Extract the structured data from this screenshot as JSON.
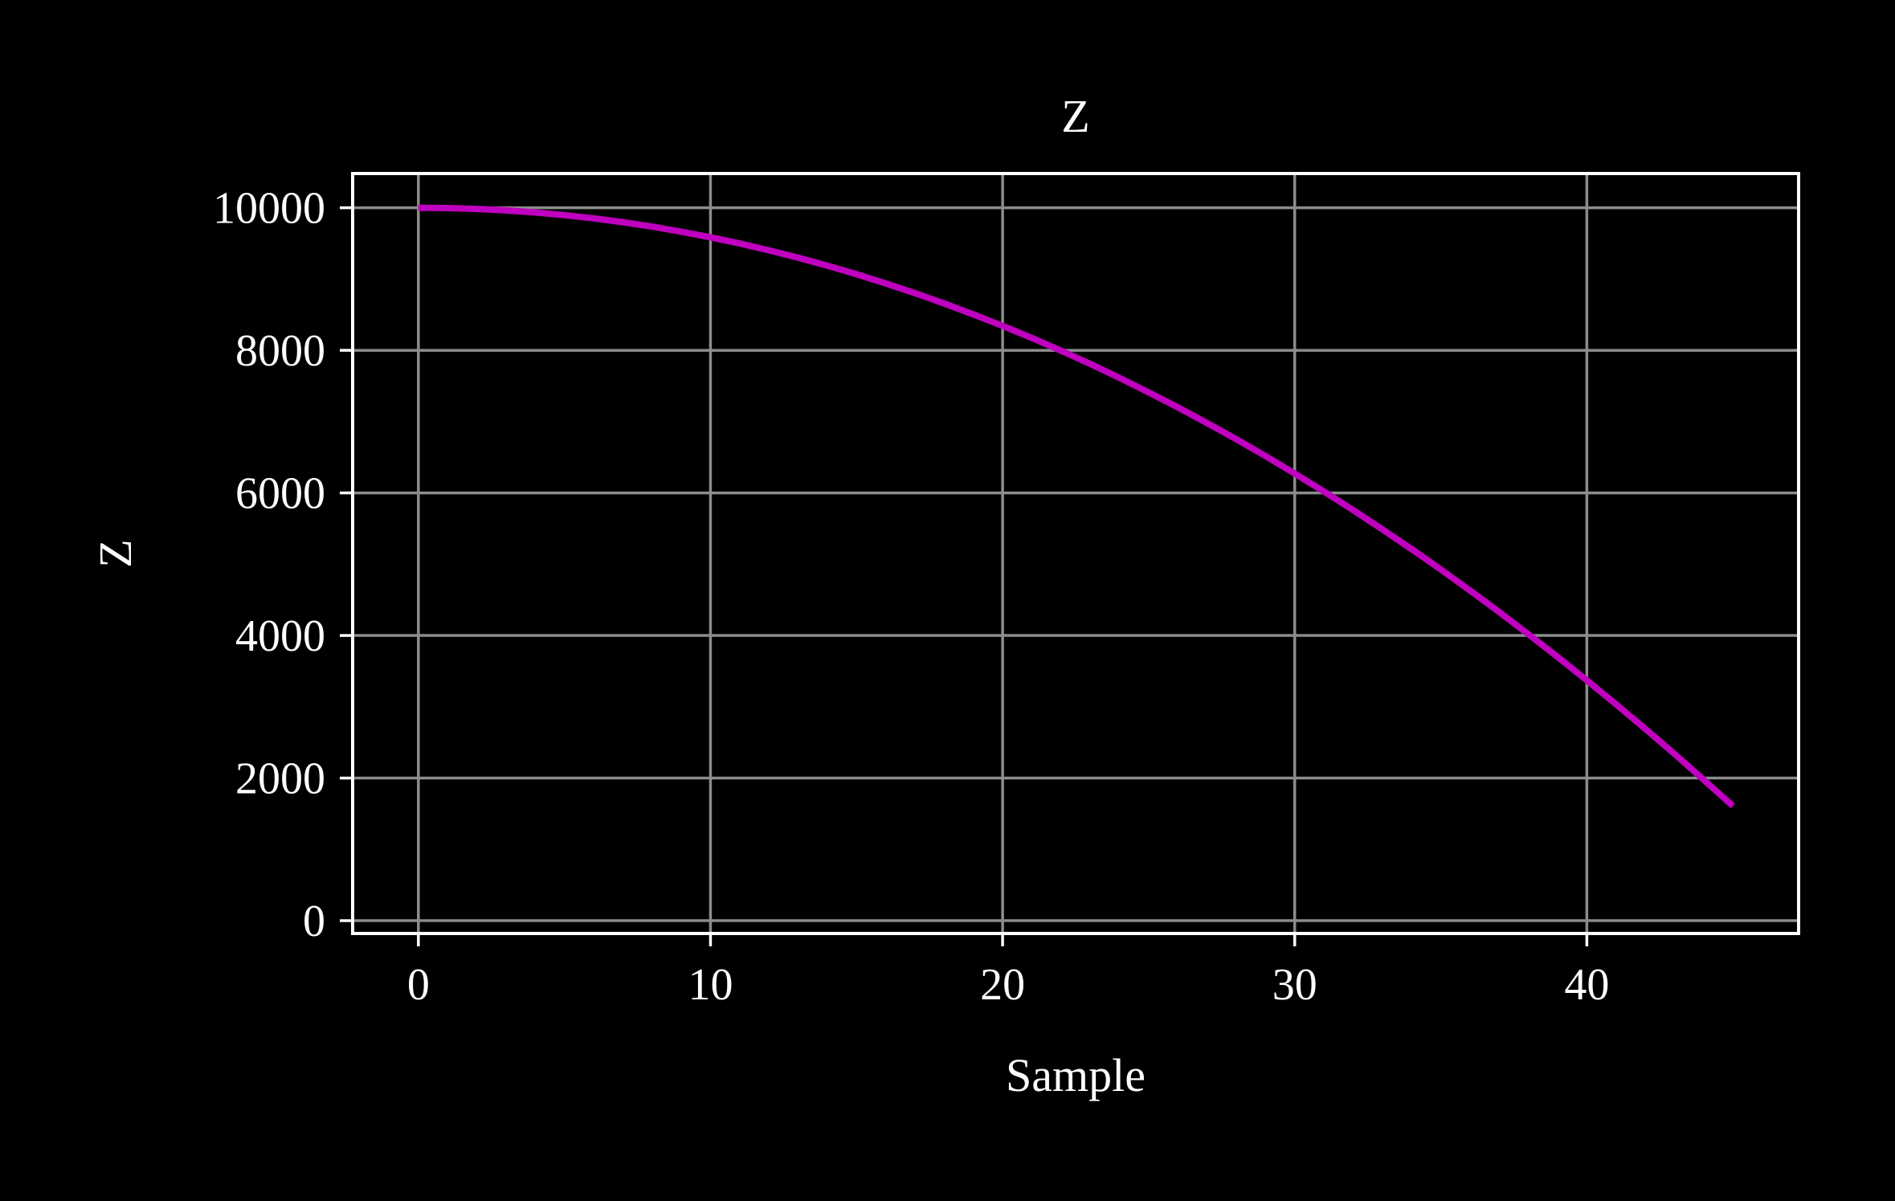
{
  "chart_data": {
    "type": "line",
    "title": "Z",
    "xlabel": "Sample",
    "ylabel": "Z",
    "xlim": [
      -2.25,
      47.25
    ],
    "ylim": [
      -180,
      10480
    ],
    "xticks": [
      0,
      10,
      20,
      30,
      40
    ],
    "yticks": [
      0,
      2000,
      4000,
      6000,
      8000,
      10000
    ],
    "xtick_labels": [
      "0",
      "10",
      "20",
      "30",
      "40"
    ],
    "ytick_labels": [
      "0",
      "2000",
      "4000",
      "6000",
      "8000",
      "10000"
    ],
    "grid": true,
    "legend": "none",
    "colors": {
      "background": "#000000",
      "axes": "#ffffff",
      "grid": "#8c8c8c",
      "line": "#bf00bf"
    },
    "series": [
      {
        "x": [
          0,
          1,
          2,
          3,
          4,
          5,
          6,
          7,
          8,
          9,
          10,
          11,
          12,
          13,
          14,
          15,
          16,
          17,
          18,
          19,
          20,
          21,
          22,
          23,
          24,
          25,
          26,
          27,
          28,
          29,
          30,
          31,
          32,
          33,
          34,
          35,
          36,
          37,
          38,
          39,
          40,
          41,
          42,
          43,
          44,
          45
        ],
        "y": [
          10000,
          9996,
          9983,
          9963,
          9934,
          9896,
          9851,
          9797,
          9735,
          9664,
          9585,
          9498,
          9403,
          9299,
          9187,
          9067,
          8939,
          8802,
          8657,
          8504,
          8342,
          8173,
          7995,
          7809,
          7614,
          7411,
          7200,
          6980,
          6753,
          6517,
          6272,
          6020,
          5759,
          5489,
          5212,
          4926,
          4632,
          4329,
          4018,
          3699,
          3371,
          3035,
          2691,
          2338,
          1977,
          1608
        ]
      }
    ]
  }
}
